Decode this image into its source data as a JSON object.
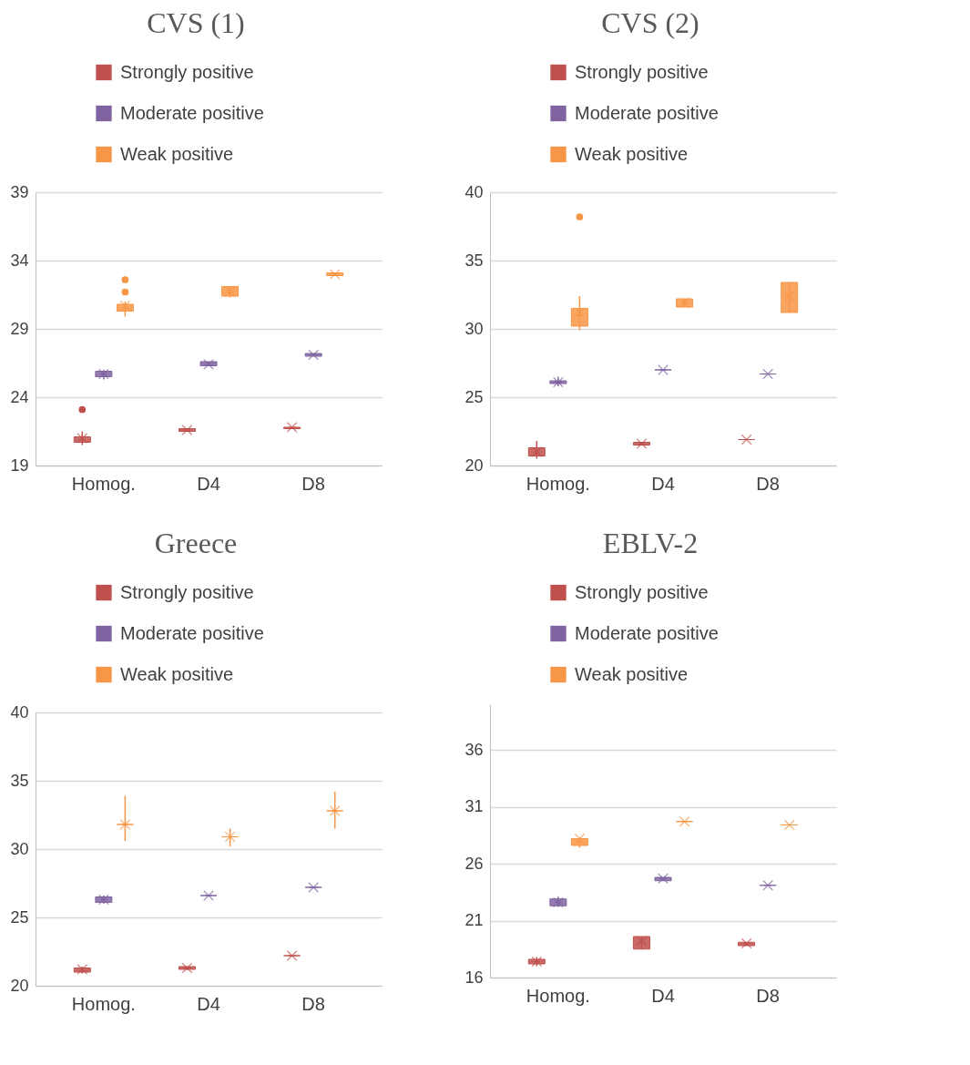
{
  "chart_data": [
    {
      "type": "box",
      "title": "CVS (1)",
      "categories": [
        "Homog.",
        "D4",
        "D8"
      ],
      "ylim": [
        19,
        39
      ],
      "yticks": [
        19,
        24,
        29,
        34,
        39
      ],
      "grid": "y",
      "legend": "top left",
      "series": [
        {
          "name": "Strongly positive",
          "color": "#c0504d",
          "boxes": [
            {
              "low": 20.5,
              "q1": 20.7,
              "median": 20.9,
              "q3": 21.1,
              "high": 21.5,
              "mean": 21.0,
              "outliers": [
                23.1
              ]
            },
            {
              "low": 21.5,
              "q1": 21.5,
              "median": 21.6,
              "q3": 21.7,
              "high": 21.7,
              "mean": 21.6
            },
            {
              "low": 21.7,
              "q1": 21.7,
              "median": 21.8,
              "q3": 21.8,
              "high": 21.8,
              "mean": 21.8
            }
          ]
        },
        {
          "name": "Moderate positive",
          "color": "#8064a2",
          "boxes": [
            {
              "low": 25.3,
              "q1": 25.5,
              "median": 25.7,
              "q3": 25.9,
              "high": 26.0,
              "mean": 25.7
            },
            {
              "low": 26.3,
              "q1": 26.3,
              "median": 26.4,
              "q3": 26.6,
              "high": 26.6,
              "mean": 26.4
            },
            {
              "low": 27.0,
              "q1": 27.0,
              "median": 27.1,
              "q3": 27.2,
              "high": 27.2,
              "mean": 27.1
            }
          ]
        },
        {
          "name": "Weak positive",
          "color": "#f79646",
          "boxes": [
            {
              "low": 29.9,
              "q1": 30.3,
              "median": 30.5,
              "q3": 30.8,
              "high": 31.0,
              "mean": 30.7,
              "outliers": [
                31.7,
                32.6
              ]
            },
            {
              "low": 31.3,
              "q1": 31.4,
              "median": 31.7,
              "q3": 32.1,
              "high": 32.1,
              "mean": 31.7
            },
            {
              "low": 32.9,
              "q1": 32.9,
              "median": 33.0,
              "q3": 33.1,
              "high": 33.1,
              "mean": 33.0
            }
          ]
        }
      ]
    },
    {
      "type": "box",
      "title": "CVS (2)",
      "categories": [
        "Homog.",
        "D4",
        "D8"
      ],
      "ylim": [
        20,
        40
      ],
      "yticks": [
        20,
        25,
        30,
        35,
        40
      ],
      "grid": "y",
      "legend": "top left",
      "series": [
        {
          "name": "Strongly positive",
          "color": "#c0504d",
          "boxes": [
            {
              "low": 20.5,
              "q1": 20.7,
              "median": 21.0,
              "q3": 21.3,
              "high": 21.8,
              "mean": 21.0
            },
            {
              "low": 21.5,
              "q1": 21.5,
              "median": 21.6,
              "q3": 21.7,
              "high": 21.7,
              "mean": 21.6
            },
            {
              "low": 21.9,
              "q1": 21.9,
              "median": 21.9,
              "q3": 21.9,
              "high": 21.9,
              "mean": 21.9
            }
          ]
        },
        {
          "name": "Moderate positive",
          "color": "#8064a2",
          "boxes": [
            {
              "low": 25.8,
              "q1": 26.0,
              "median": 26.1,
              "q3": 26.2,
              "high": 26.5,
              "mean": 26.1
            },
            {
              "low": 27.0,
              "q1": 27.0,
              "median": 27.0,
              "q3": 27.0,
              "high": 27.0,
              "mean": 27.0
            },
            {
              "low": 26.7,
              "q1": 26.7,
              "median": 26.7,
              "q3": 26.7,
              "high": 26.7,
              "mean": 26.7
            }
          ]
        },
        {
          "name": "Weak positive",
          "color": "#f79646",
          "boxes": [
            {
              "low": 29.9,
              "q1": 30.2,
              "median": 31.0,
              "q3": 31.5,
              "high": 32.4,
              "mean": 31.2,
              "outliers": [
                38.2
              ]
            },
            {
              "low": 31.6,
              "q1": 31.6,
              "median": 31.9,
              "q3": 32.2,
              "high": 32.2,
              "mean": 31.9
            },
            {
              "low": 31.2,
              "q1": 31.2,
              "median": 32.4,
              "q3": 33.4,
              "high": 33.4,
              "mean": 32.4
            }
          ]
        }
      ]
    },
    {
      "type": "box",
      "title": "Greece",
      "categories": [
        "Homog.",
        "D4",
        "D8"
      ],
      "ylim": [
        20,
        40
      ],
      "yticks": [
        20,
        25,
        30,
        35,
        40
      ],
      "grid": "y",
      "legend": "top left",
      "series": [
        {
          "name": "Strongly positive",
          "color": "#c0504d",
          "boxes": [
            {
              "low": 20.9,
              "q1": 21.0,
              "median": 21.1,
              "q3": 21.3,
              "high": 21.4,
              "mean": 21.2
            },
            {
              "low": 21.2,
              "q1": 21.2,
              "median": 21.3,
              "q3": 21.4,
              "high": 21.4,
              "mean": 21.3
            },
            {
              "low": 22.2,
              "q1": 22.2,
              "median": 22.2,
              "q3": 22.2,
              "high": 22.2,
              "mean": 22.2
            }
          ]
        },
        {
          "name": "Moderate positive",
          "color": "#8064a2",
          "boxes": [
            {
              "low": 26.0,
              "q1": 26.1,
              "median": 26.3,
              "q3": 26.5,
              "high": 26.6,
              "mean": 26.3
            },
            {
              "low": 26.6,
              "q1": 26.6,
              "median": 26.6,
              "q3": 26.6,
              "high": 26.6,
              "mean": 26.6
            },
            {
              "low": 27.2,
              "q1": 27.2,
              "median": 27.2,
              "q3": 27.2,
              "high": 27.2,
              "mean": 27.2
            }
          ]
        },
        {
          "name": "Weak positive",
          "color": "#f79646",
          "boxes": [
            {
              "low": 30.6,
              "q1": 31.8,
              "median": 31.8,
              "q3": 31.8,
              "high": 33.9,
              "mean": 31.8
            },
            {
              "low": 30.2,
              "q1": 30.9,
              "median": 30.9,
              "q3": 30.9,
              "high": 31.5,
              "mean": 30.9
            },
            {
              "low": 31.5,
              "q1": 32.8,
              "median": 32.8,
              "q3": 32.8,
              "high": 34.2,
              "mean": 32.8
            }
          ]
        }
      ]
    },
    {
      "type": "box",
      "title": "EBLV-2",
      "categories": [
        "Homog.",
        "D4",
        "D8"
      ],
      "ylim": [
        16,
        40
      ],
      "yticks": [
        16,
        21,
        26,
        31,
        36
      ],
      "grid": "y",
      "legend": "top left",
      "series": [
        {
          "name": "Strongly positive",
          "color": "#c0504d",
          "boxes": [
            {
              "low": 17.0,
              "q1": 17.2,
              "median": 17.4,
              "q3": 17.6,
              "high": 17.8,
              "mean": 17.4
            },
            {
              "low": 18.5,
              "q1": 18.5,
              "median": 19.1,
              "q3": 19.6,
              "high": 19.6,
              "mean": 19.2
            },
            {
              "low": 18.8,
              "q1": 18.8,
              "median": 19.0,
              "q3": 19.1,
              "high": 19.1,
              "mean": 19.0
            }
          ]
        },
        {
          "name": "Moderate positive",
          "color": "#8064a2",
          "boxes": [
            {
              "low": 22.2,
              "q1": 22.3,
              "median": 22.6,
              "q3": 22.9,
              "high": 23.1,
              "mean": 22.6
            },
            {
              "low": 24.5,
              "q1": 24.5,
              "median": 24.7,
              "q3": 24.8,
              "high": 24.8,
              "mean": 24.7
            },
            {
              "low": 24.1,
              "q1": 24.1,
              "median": 24.1,
              "q3": 24.1,
              "high": 24.1,
              "mean": 24.1
            }
          ]
        },
        {
          "name": "Weak positive",
          "color": "#f79646",
          "boxes": [
            {
              "low": 27.4,
              "q1": 27.6,
              "median": 27.9,
              "q3": 28.2,
              "high": 28.3,
              "mean": 28.2
            },
            {
              "low": 29.7,
              "q1": 29.7,
              "median": 29.7,
              "q3": 29.7,
              "high": 29.7,
              "mean": 29.7
            },
            {
              "low": 29.4,
              "q1": 29.4,
              "median": 29.4,
              "q3": 29.4,
              "high": 29.4,
              "mean": 29.4
            }
          ]
        }
      ]
    }
  ]
}
